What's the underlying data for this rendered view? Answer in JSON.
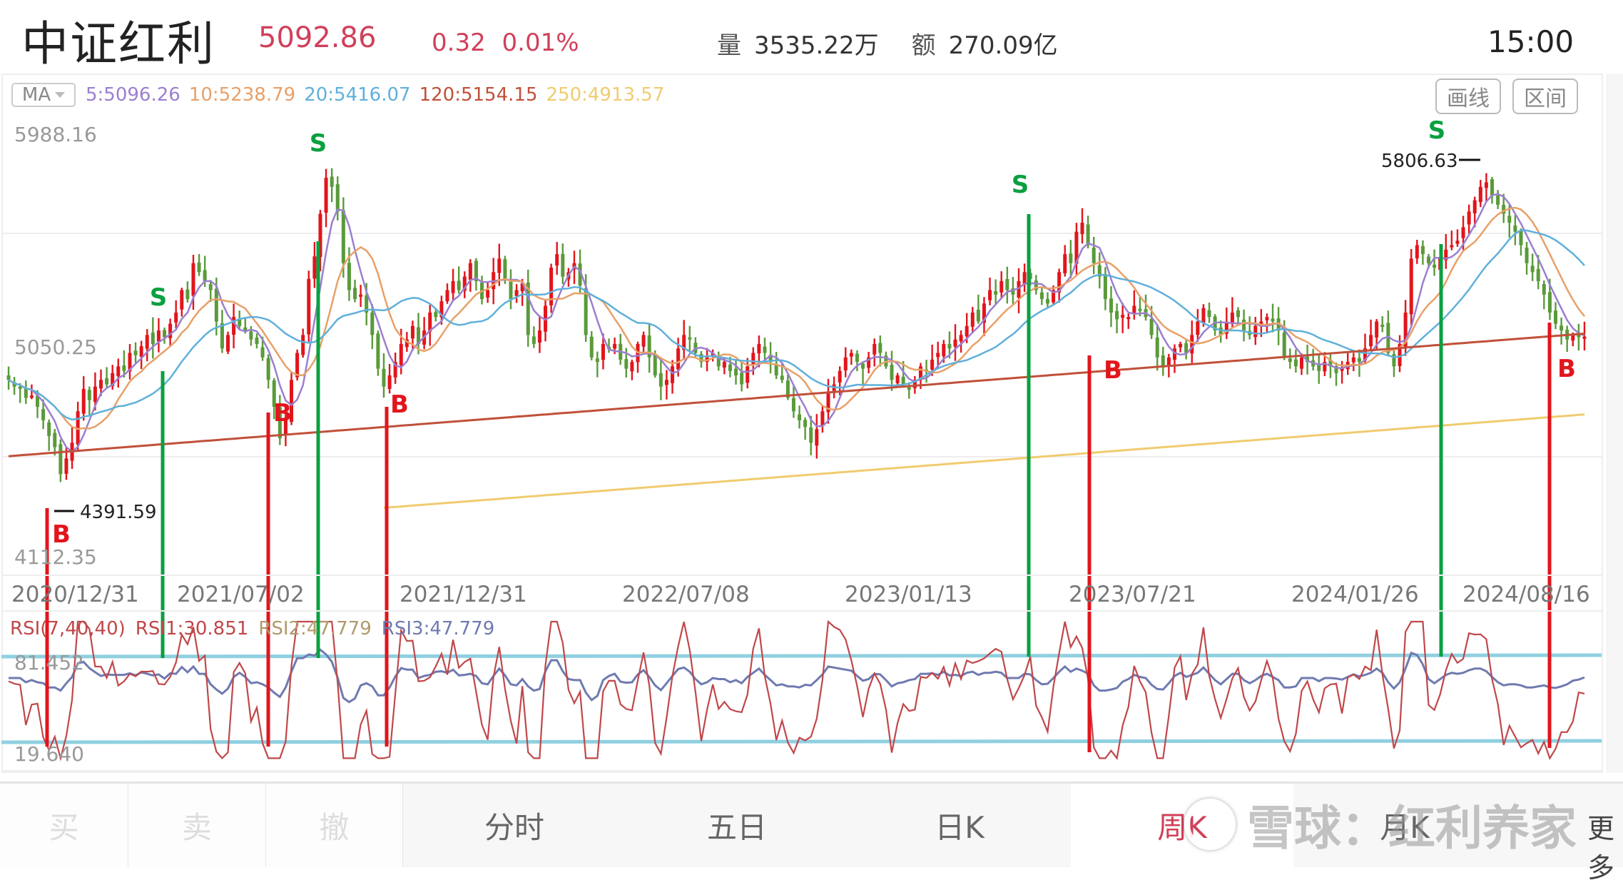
{
  "header": {
    "title": "中证红利",
    "price": "5092.86",
    "change": "0.32",
    "change_pct": "0.01%",
    "volume_label": "量",
    "volume": "3535.22万",
    "amount_label": "额",
    "amount": "270.09亿",
    "time": "15:00"
  },
  "toolbar": {
    "ma_select": "MA",
    "ma_values": [
      {
        "label": "5:5096.26",
        "color": "#9b7fd0"
      },
      {
        "label": "10:5238.79",
        "color": "#e8a068"
      },
      {
        "label": "20:5416.07",
        "color": "#5fb0dc"
      },
      {
        "label": "120:5154.15",
        "color": "#c0503a"
      },
      {
        "label": "250:4913.57",
        "color": "#f0cc70"
      }
    ],
    "draw_button": "画线",
    "range_button": "区间"
  },
  "rsi_header": {
    "title": "RSI(7,40,40)",
    "rsi1": "RSI1:30.851",
    "rsi2": "RSI2:47.779",
    "rsi3": "RSI3:47.779"
  },
  "tabs": {
    "trade": [
      "买",
      "卖",
      "撤"
    ],
    "periods": [
      "分时",
      "五日",
      "日K",
      "周K",
      "月K"
    ],
    "active": "周K",
    "more": "更多"
  },
  "watermark": "雪球：红利养家",
  "colors": {
    "up": "#e2151c",
    "down": "#5a9a3a",
    "signal_buy": "#e2151c",
    "signal_sell": "#0aa040",
    "rsi_line": "#c0474a",
    "rsi_slow": "#6f7ab0",
    "rsi_band": "#8fd0e0"
  },
  "chart_data": [
    {
      "type": "candlestick",
      "title": "中证红利 周K",
      "period": "weekly",
      "x_tick_labels": [
        "2020/12/31",
        "2021/07/02",
        "2021/12/31",
        "2022/07/08",
        "2023/01/13",
        "2023/07/21",
        "2024/01/26",
        "2024/08/16"
      ],
      "y_tick_labels": [
        "5988.16",
        "5050.25",
        "4112.35"
      ],
      "ylim": [
        4112.35,
        5988.16
      ],
      "annotations": [
        {
          "text": "4391.59",
          "type": "low_marker",
          "x": "2020/12/31"
        },
        {
          "text": "5806.63",
          "type": "high_marker",
          "x": "2024/06"
        }
      ],
      "signals": [
        {
          "label": "B",
          "x_index": 9,
          "price": 4391.59
        },
        {
          "label": "S",
          "x_index": 31,
          "price": 5200
        },
        {
          "label": "B",
          "x_index": 52,
          "price": 4850
        },
        {
          "label": "S",
          "x_index": 62,
          "price": 5700
        },
        {
          "label": "B",
          "x_index": 75,
          "price": 4950
        },
        {
          "label": "S",
          "x_index": 200,
          "price": 5560
        },
        {
          "label": "B",
          "x_index": 212,
          "price": 4900
        },
        {
          "label": "S",
          "x_index": 280,
          "price": 5550
        },
        {
          "label": "B",
          "x_index": 303,
          "price": 4880
        }
      ],
      "closes": [
        4900,
        4870,
        4860,
        4820,
        4830,
        4780,
        4720,
        4650,
        4600,
        4480,
        4550,
        4620,
        4760,
        4860,
        4810,
        4870,
        4900,
        4880,
        4930,
        4960,
        4940,
        5020,
        5010,
        5050,
        5100,
        5060,
        5120,
        5090,
        5150,
        5200,
        5300,
        5260,
        5420,
        5380,
        5340,
        5300,
        5160,
        5040,
        5100,
        5180,
        5140,
        5120,
        5080,
        5060,
        5000,
        4900,
        4780,
        4640,
        4720,
        4900,
        5020,
        5100,
        5350,
        5450,
        5640,
        5800,
        5760,
        5650,
        5420,
        5300,
        5260,
        5280,
        5200,
        5100,
        4950,
        4870,
        4920,
        4980,
        5060,
        5080,
        5140,
        5060,
        5120,
        5200,
        5180,
        5250,
        5300,
        5340,
        5300,
        5360,
        5420,
        5340,
        5260,
        5300,
        5380,
        5440,
        5350,
        5260,
        5300,
        5330,
        5100,
        5060,
        5120,
        5230,
        5400,
        5460,
        5360,
        5380,
        5420,
        5320,
        5100,
        5000,
        4980,
        5060,
        5040,
        5060,
        4990,
        4950,
        4980,
        5060,
        5100,
        5000,
        4920,
        4870,
        4900,
        4960,
        5040,
        5100,
        5080,
        5020,
        4980,
        5000,
        5020,
        4960,
        4980,
        4940,
        4920,
        4880,
        4960,
        5020,
        5060,
        5020,
        4980,
        4920,
        4900,
        4820,
        4760,
        4720,
        4690,
        4620,
        4680,
        4760,
        4840,
        4880,
        4940,
        5000,
        5020,
        4980,
        4950,
        5000,
        5060,
        5020,
        4960,
        4900,
        4920,
        4880,
        4860,
        4900,
        4960,
        4940,
        4990,
        5020,
        5060,
        5040,
        5080,
        5100,
        5140,
        5200,
        5160,
        5240,
        5300,
        5280,
        5340,
        5300,
        5280,
        5340,
        5380,
        5350,
        5300,
        5260,
        5240,
        5300,
        5380,
        5460,
        5420,
        5560,
        5600,
        5500,
        5420,
        5360,
        5260,
        5200,
        5170,
        5190,
        5180,
        5230,
        5210,
        5180,
        5100,
        5000,
        4960,
        5000,
        5040,
        5060,
        5020,
        5100,
        5160,
        5220,
        5180,
        5120,
        5100,
        5160,
        5200,
        5180,
        5120,
        5100,
        5140,
        5160,
        5180,
        5160,
        5120,
        5000,
        4980,
        4960,
        5000,
        4980,
        4960,
        4940,
        4980,
        4960,
        4930,
        4950,
        4980,
        5000,
        4980,
        5040,
        5100,
        5160,
        5140,
        5020,
        4960,
        5060,
        5200,
        5440,
        5500,
        5460,
        5420,
        5400,
        5440,
        5480,
        5500,
        5520,
        5580,
        5650,
        5700,
        5760,
        5780,
        5720,
        5680,
        5640,
        5600,
        5560,
        5500,
        5420,
        5380,
        5340,
        5280,
        5200,
        5150,
        5120,
        5080,
        5100,
        5090,
        5092.86
      ]
    },
    {
      "type": "line",
      "title": "RSI(7,40,40)",
      "series": [
        {
          "name": "RSI1",
          "last": 30.851
        },
        {
          "name": "RSI2",
          "last": 47.779
        },
        {
          "name": "RSI3",
          "last": 47.779
        }
      ],
      "y_tick_labels": [
        "81.452",
        "19.640"
      ],
      "ylim": [
        19.64,
        81.452
      ]
    }
  ]
}
